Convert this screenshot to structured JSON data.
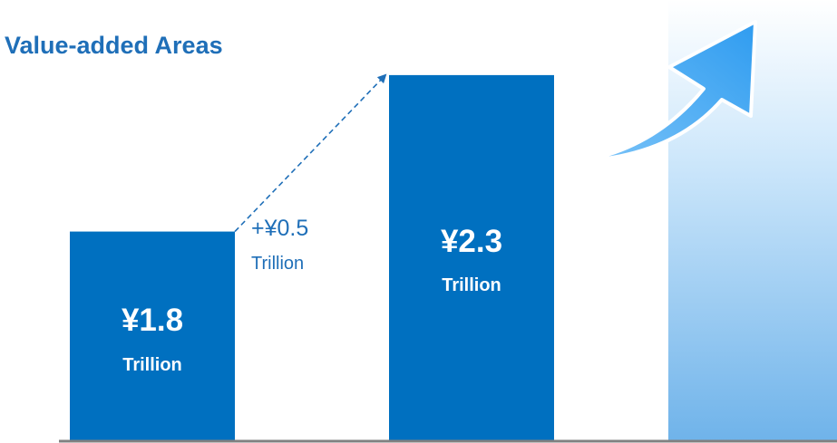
{
  "chart_data": {
    "type": "bar",
    "title": "Value-added Areas",
    "categories": [
      null,
      null
    ],
    "values": [
      1.8,
      2.3
    ],
    "value_labels": [
      "¥1.8",
      "¥2.3"
    ],
    "value_sublabels": [
      "Trillion",
      "Trillion"
    ],
    "color": "#0070c0",
    "ylim": [
      1.13,
      2.54
    ],
    "annotation": {
      "value": 0.5,
      "label": "+¥0.5",
      "sublabel": "Trillion"
    }
  }
}
